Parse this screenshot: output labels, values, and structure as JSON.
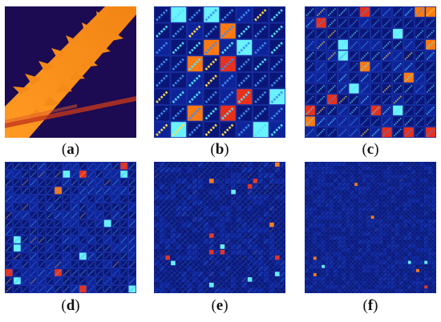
{
  "figure": {
    "panels": [
      {
        "id": "a",
        "label_open": "(",
        "letter": "a",
        "label_close": ")"
      },
      {
        "id": "b",
        "label_open": "(",
        "letter": "b",
        "label_close": ")"
      },
      {
        "id": "c",
        "label_open": "(",
        "letter": "c",
        "label_close": ")"
      },
      {
        "id": "d",
        "label_open": "(",
        "letter": "d",
        "label_close": ")"
      },
      {
        "id": "e",
        "label_open": "(",
        "letter": "e",
        "label_close": ")"
      },
      {
        "id": "f",
        "label_open": "(",
        "letter": "f",
        "label_close": ")"
      }
    ],
    "colors": {
      "background": "#0a1677",
      "panel_a_background": "#1c0a52",
      "panel_a_glow": "#f58a18",
      "cell_border": "#1f3cb8",
      "diag_low": "#3a8cf0",
      "diag_mid": "#54e0ff",
      "diag_high": "#ff7a10",
      "hot_red": "#e8301a",
      "hot_cyan": "#6af2ff",
      "hot_yellow": "#ffe14a"
    },
    "grid_sizes": {
      "b": 8,
      "c": 12,
      "d": 16,
      "e": 24,
      "f": 32
    }
  }
}
